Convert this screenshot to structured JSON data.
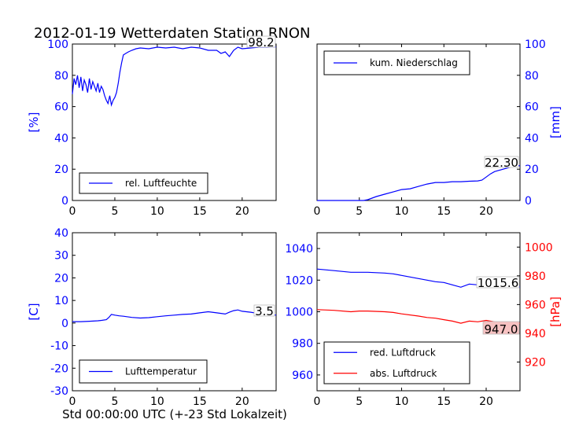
{
  "title": "2012-01-19 Wetterdaten Station RNON",
  "xlabel": "Std 00:00:00 UTC (+-23 Std Lokalzeit)",
  "colors": {
    "blue": "#0000ff",
    "red": "#ff0000"
  },
  "chart_data": [
    {
      "panel": "top-left",
      "type": "line",
      "ylabel": "[%]",
      "ylabel_side": "left",
      "xlim": [
        0,
        24
      ],
      "ylim": [
        0,
        100
      ],
      "xticks": [
        0,
        5,
        10,
        15,
        20
      ],
      "yticks": [
        0,
        20,
        40,
        60,
        80,
        100
      ],
      "legend": "lower-left",
      "annotation": "98.2",
      "series": [
        {
          "name": "rel. Luftfeuchte",
          "color": "#0000ff",
          "x": [
            0,
            0.2,
            0.4,
            0.6,
            0.8,
            1.0,
            1.2,
            1.4,
            1.6,
            1.8,
            2.0,
            2.2,
            2.4,
            2.6,
            2.8,
            3.0,
            3.2,
            3.4,
            3.6,
            3.8,
            4.0,
            4.2,
            4.4,
            4.6,
            4.8,
            5.0,
            5.2,
            5.4,
            5.6,
            5.8,
            6.0,
            6.3,
            6.6,
            7.0,
            7.5,
            8.0,
            9.0,
            10.0,
            11.0,
            12.0,
            13.0,
            14.0,
            15.0,
            16.0,
            17.0,
            17.5,
            18.0,
            18.5,
            19.0,
            19.5,
            20.0,
            21.0,
            22.0,
            23.0,
            24.0
          ],
          "y": [
            68,
            78,
            74,
            80,
            72,
            79,
            70,
            77,
            74,
            69,
            78,
            71,
            76,
            73,
            70,
            75,
            69,
            73,
            71,
            67,
            64,
            62,
            67,
            61,
            64,
            66,
            69,
            75,
            82,
            88,
            93,
            94,
            95,
            96,
            97,
            97.5,
            97,
            98,
            97.5,
            98,
            97,
            98,
            97.5,
            96,
            96,
            94,
            95,
            92,
            96,
            98,
            97,
            97.5,
            98,
            98,
            98.2
          ]
        }
      ]
    },
    {
      "panel": "top-right",
      "type": "line",
      "ylabel": "[mm]",
      "ylabel_side": "right",
      "xlim": [
        0,
        24
      ],
      "ylim": [
        0,
        100
      ],
      "xticks": [
        0,
        5,
        10,
        15,
        20
      ],
      "yticks": [
        0,
        20,
        40,
        60,
        80,
        100
      ],
      "legend": "upper-left",
      "annotation": "22.30",
      "series": [
        {
          "name": "kum. Niederschlag",
          "color": "#0000ff",
          "x": [
            0,
            2,
            4,
            5.5,
            6,
            6.5,
            7,
            8,
            9,
            10,
            11,
            12,
            13,
            14,
            15,
            16,
            17,
            18,
            19,
            19.5,
            20,
            20.5,
            21,
            22,
            23,
            24
          ],
          "y": [
            0,
            0,
            0,
            0,
            0.5,
            1.5,
            2.5,
            4,
            5.5,
            7,
            7.5,
            9,
            10.5,
            11.5,
            11.5,
            12,
            12,
            12.3,
            12.5,
            13,
            15,
            17,
            18.5,
            20,
            21.5,
            22.3
          ]
        }
      ]
    },
    {
      "panel": "bottom-left",
      "type": "line",
      "ylabel": "[C]",
      "ylabel_side": "left",
      "xlim": [
        0,
        24
      ],
      "ylim": [
        -30,
        40
      ],
      "xticks": [
        0,
        5,
        10,
        15,
        20
      ],
      "yticks": [
        -30,
        -20,
        -10,
        0,
        10,
        20,
        30,
        40
      ],
      "legend": "lower-left",
      "annotation": "3.5",
      "series": [
        {
          "name": "Lufttemperatur",
          "color": "#0000ff",
          "x": [
            0,
            1,
            2,
            3,
            3.5,
            4,
            4.3,
            4.6,
            5,
            5.5,
            6,
            7,
            8,
            9,
            10,
            11,
            12,
            13,
            14,
            15,
            16,
            17,
            18,
            18.5,
            19,
            19.5,
            20,
            21,
            22,
            23,
            24
          ],
          "y": [
            0.6,
            0.6,
            0.8,
            1.0,
            1.2,
            1.5,
            2.5,
            3.8,
            3.5,
            3.2,
            3.0,
            2.5,
            2.2,
            2.4,
            2.8,
            3.2,
            3.5,
            3.8,
            4.0,
            4.5,
            5.0,
            4.5,
            4.0,
            4.8,
            5.5,
            5.8,
            5.2,
            4.8,
            4.2,
            3.8,
            3.5
          ]
        }
      ]
    },
    {
      "panel": "bottom-right",
      "type": "line",
      "ylabel": "[hPa]",
      "ylabel_side": "right",
      "xlim": [
        0,
        24
      ],
      "ylim_left": [
        950,
        1050
      ],
      "ylim_right": [
        900,
        1010
      ],
      "xticks": [
        0,
        5,
        10,
        15,
        20
      ],
      "yticks_left": [
        960,
        980,
        1000,
        1020,
        1040
      ],
      "yticks_right": [
        920,
        940,
        960,
        980,
        1000
      ],
      "legend": "lower-left",
      "annotations": [
        "1015.6",
        "947.0"
      ],
      "series": [
        {
          "name": "red. Luftdruck",
          "color": "#0000ff",
          "axis": "left",
          "x": [
            0,
            2,
            4,
            6,
            8,
            9,
            10,
            12,
            13,
            14,
            15,
            16,
            17,
            18,
            19,
            20,
            21,
            22,
            23,
            24
          ],
          "y": [
            1027,
            1026,
            1025,
            1025,
            1024.5,
            1024,
            1023,
            1021,
            1020,
            1019,
            1018.5,
            1017,
            1015.5,
            1017.5,
            1017,
            1017.5,
            1016.5,
            1016,
            1016,
            1015.6
          ]
        },
        {
          "name": "abs. Luftdruck",
          "color": "#ff0000",
          "axis": "right",
          "x": [
            0,
            2,
            4,
            5,
            6,
            8,
            9,
            10,
            12,
            13,
            14,
            15,
            16,
            17,
            18,
            19,
            20,
            21,
            22,
            23,
            24
          ],
          "y": [
            956.5,
            956,
            955,
            955.5,
            955.5,
            955,
            954.5,
            953.5,
            952,
            951,
            950.5,
            949.5,
            948.5,
            947,
            948.5,
            948,
            949,
            948,
            947.5,
            947.2,
            947.0
          ]
        }
      ]
    }
  ]
}
